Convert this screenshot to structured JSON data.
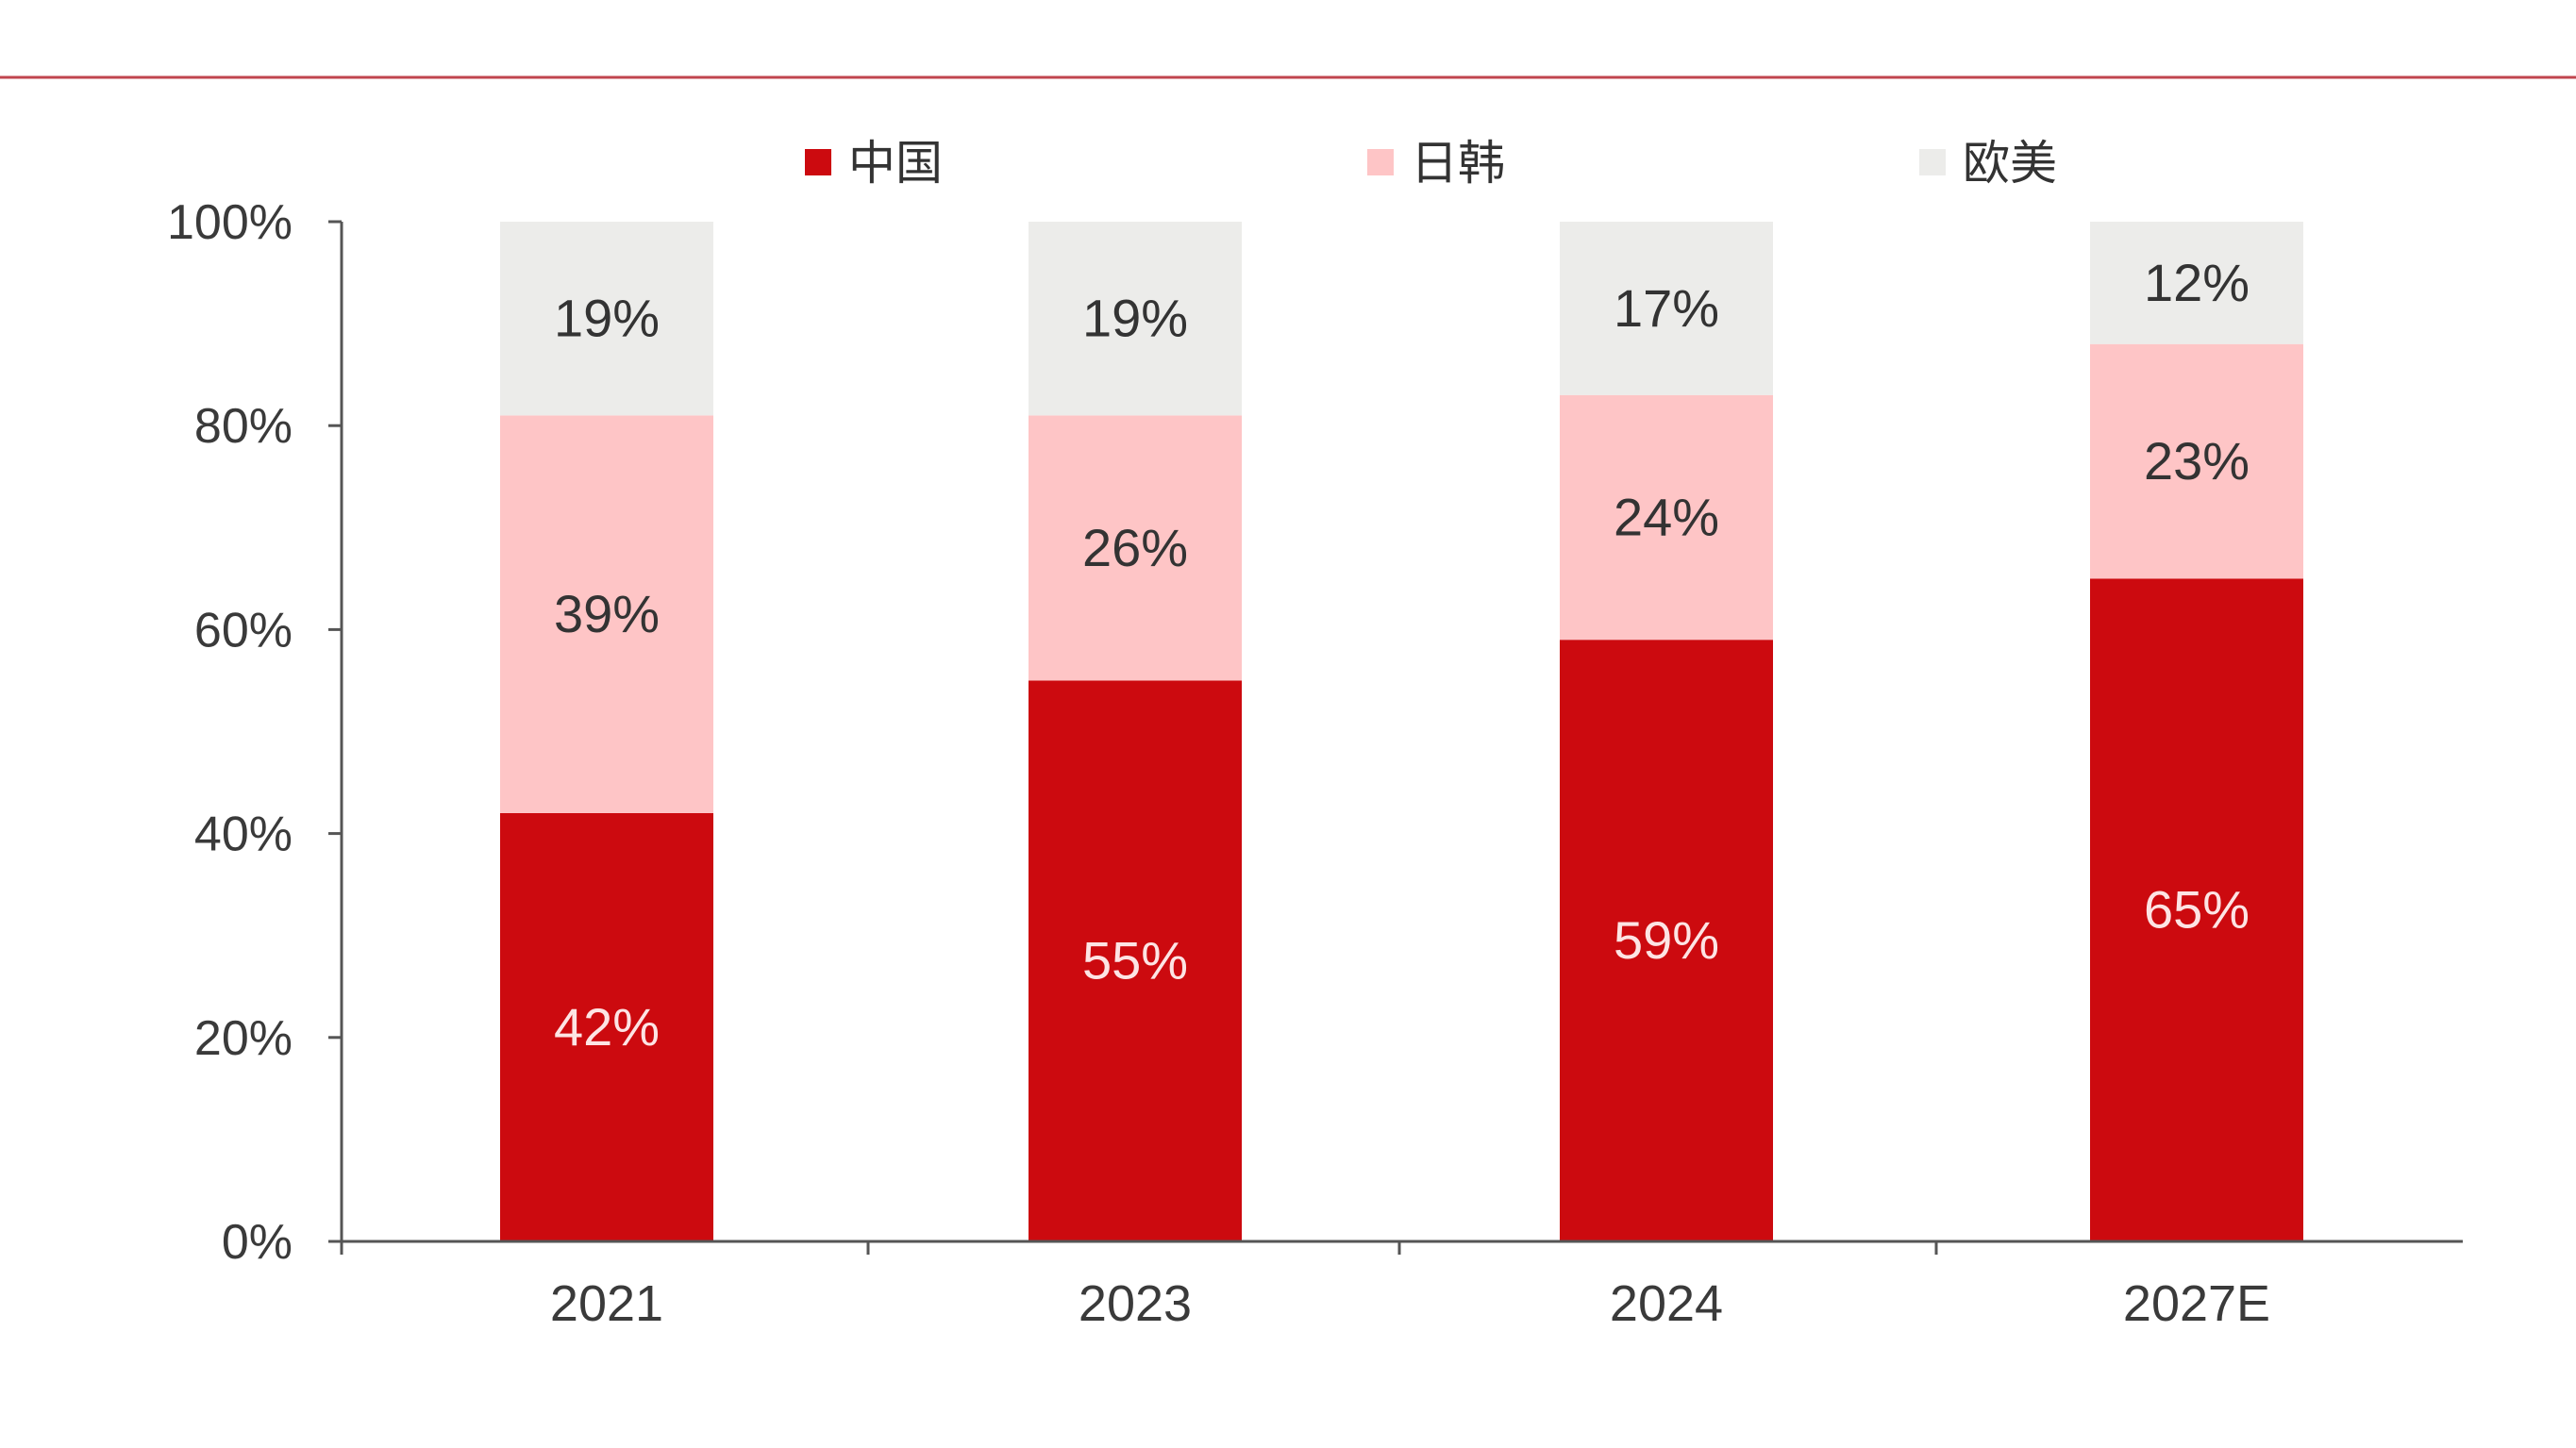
{
  "chart_data": {
    "type": "bar",
    "stacked": true,
    "categories": [
      "2021",
      "2023",
      "2024",
      "2027E"
    ],
    "series": [
      {
        "name": "中国",
        "values": [
          42,
          55,
          59,
          65
        ],
        "color": "#cc0a0f",
        "label_color": "#fde4e4"
      },
      {
        "name": "日韩",
        "values": [
          39,
          26,
          24,
          23
        ],
        "color": "#fec5c6",
        "label_color": "#333333"
      },
      {
        "name": "欧美",
        "values": [
          19,
          19,
          17,
          12
        ],
        "color": "#ececea",
        "label_color": "#333333"
      }
    ],
    "data_labels": [
      [
        "42%",
        "55%",
        "59%",
        "65%"
      ],
      [
        "39%",
        "26%",
        "24%",
        "23%"
      ],
      [
        "19%",
        "19%",
        "17%",
        "12%"
      ]
    ],
    "yticks": [
      "0%",
      "20%",
      "40%",
      "60%",
      "80%",
      "100%"
    ],
    "ylim": [
      0,
      100
    ],
    "title": "",
    "xlabel": "",
    "ylabel": "",
    "grid": false,
    "legend_position": "top",
    "header_rule_color": "#c0454e"
  }
}
